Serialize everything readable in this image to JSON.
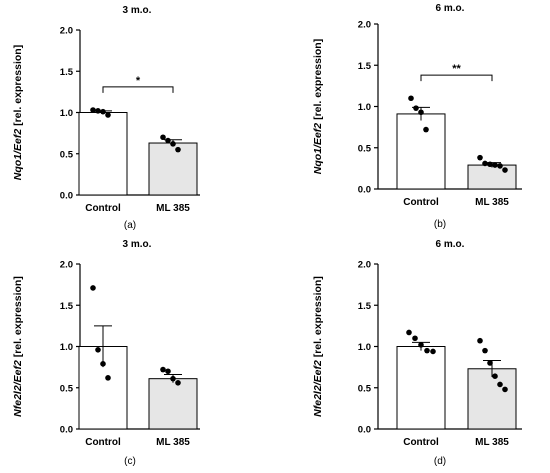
{
  "chart_data": [
    {
      "type": "bar",
      "title": "3 m.o.",
      "ylabel_italic": "Nqo1/Eef2",
      "ylabel_rest": " [rel. expression]",
      "categories": [
        "Control",
        "ML 385"
      ],
      "values": [
        1.0,
        0.63
      ],
      "sem": [
        0.02,
        0.04
      ],
      "points": [
        [
          1.03,
          1.02,
          1.01,
          0.97
        ],
        [
          0.7,
          0.66,
          0.62,
          0.55
        ]
      ],
      "ylim": [
        0,
        2.0
      ],
      "yticks": [
        "0.0",
        "0.5",
        "1.0",
        "1.5",
        "2.0"
      ],
      "significance": "*",
      "panel_label": "(a)",
      "colors": [
        "#ffffff",
        "#e6e6e6"
      ]
    },
    {
      "type": "bar",
      "title": "6 m.o.",
      "ylabel_italic": "Nqo1/Eef2",
      "ylabel_rest": " [rel. expression]",
      "categories": [
        "Control",
        "ML 385"
      ],
      "values": [
        0.91,
        0.29
      ],
      "sem": [
        0.08,
        0.03
      ],
      "points": [
        [
          1.1,
          0.98,
          0.93,
          0.72
        ],
        [
          0.38,
          0.31,
          0.3,
          0.29,
          0.28,
          0.23
        ]
      ],
      "ylim": [
        0,
        2.0
      ],
      "yticks": [
        "0.0",
        "0.5",
        "1.0",
        "1.5",
        "2.0"
      ],
      "significance": "**",
      "panel_label": "(b)",
      "colors": [
        "#ffffff",
        "#e6e6e6"
      ]
    },
    {
      "type": "bar",
      "title": "3 m.o.",
      "ylabel_italic": "Nfe2l2/Eef2",
      "ylabel_rest": " [rel. expression]",
      "categories": [
        "Control",
        "ML 385"
      ],
      "values": [
        1.0,
        0.61
      ],
      "sem": [
        0.25,
        0.05
      ],
      "points": [
        [
          1.71,
          0.96,
          0.79,
          0.62
        ],
        [
          0.72,
          0.7,
          0.61,
          0.56
        ]
      ],
      "ylim": [
        0,
        2.0
      ],
      "yticks": [
        "0.0",
        "0.5",
        "1.0",
        "1.5",
        "2.0"
      ],
      "significance": "",
      "panel_label": "(c)",
      "colors": [
        "#ffffff",
        "#e6e6e6"
      ]
    },
    {
      "type": "bar",
      "title": "6 m.o.",
      "ylabel_italic": "Nfe2l2/Eef2",
      "ylabel_rest": " [rel. expression]",
      "categories": [
        "Control",
        "ML 385"
      ],
      "values": [
        1.0,
        0.73
      ],
      "sem": [
        0.05,
        0.1
      ],
      "points": [
        [
          1.17,
          1.1,
          1.02,
          0.95,
          0.94
        ],
        [
          1.07,
          0.95,
          0.8,
          0.64,
          0.54,
          0.48
        ]
      ],
      "ylim": [
        0,
        2.0
      ],
      "yticks": [
        "0.0",
        "0.5",
        "1.0",
        "1.5",
        "2.0"
      ],
      "significance": "",
      "panel_label": "(d)",
      "colors": [
        "#ffffff",
        "#e6e6e6"
      ]
    }
  ]
}
